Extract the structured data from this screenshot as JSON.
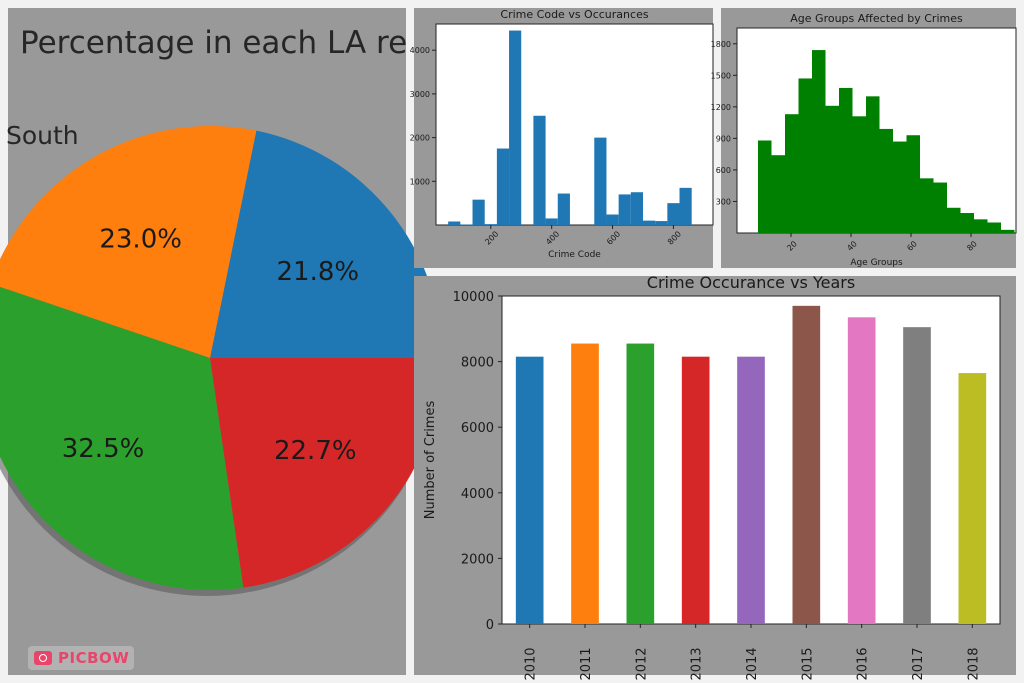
{
  "chart_data": [
    {
      "type": "pie",
      "title": "Percentage in each LA re",
      "labels": [
        "South"
      ],
      "slices": [
        {
          "value": 21.8,
          "label": "21.8%",
          "color": "#1f77b4"
        },
        {
          "value": 23.0,
          "label": "23.0%",
          "color": "#ff7f0e"
        },
        {
          "value": 32.5,
          "label": "32.5%",
          "color": "#2ca02c"
        },
        {
          "value": 22.7,
          "label": "22.7%",
          "color": "#d62728"
        }
      ]
    },
    {
      "type": "bar",
      "title": "Crime Code vs Occurances",
      "xlabel": "Crime Code",
      "ylabel": "",
      "xlim": [
        20,
        930
      ],
      "ylim": [
        0,
        4600
      ],
      "xticks": [
        200,
        400,
        600,
        800
      ],
      "yticks": [
        1000,
        2000,
        3000,
        4000
      ],
      "bin_edges": [
        60,
        100,
        140,
        180,
        220,
        260,
        300,
        340,
        380,
        420,
        460,
        500,
        540,
        580,
        620,
        660,
        700,
        740,
        780,
        820,
        860,
        900,
        940
      ],
      "values": [
        80,
        10,
        580,
        20,
        1750,
        4450,
        0,
        2500,
        150,
        720,
        0,
        0,
        2000,
        240,
        700,
        750,
        100,
        90,
        500,
        850,
        0,
        0
      ],
      "color": "#1f77b4"
    },
    {
      "type": "bar",
      "title": "Age Groups Affected by Crimes",
      "xlabel": "Age Groups",
      "ylabel": "",
      "xlim": [
        2,
        95
      ],
      "ylim": [
        0,
        1950
      ],
      "xticks": [
        20,
        40,
        60,
        80
      ],
      "yticks": [
        300,
        600,
        900,
        1200,
        1500,
        1800
      ],
      "bin_edges": [
        9,
        13.5,
        18,
        22.5,
        27,
        31.5,
        36,
        40.5,
        45,
        49.5,
        54,
        58.5,
        63,
        67.5,
        72,
        76.5,
        81,
        85.5,
        90,
        94.5
      ],
      "values": [
        880,
        740,
        1130,
        1470,
        1740,
        1210,
        1380,
        1110,
        1300,
        990,
        870,
        930,
        520,
        480,
        240,
        190,
        130,
        100,
        30
      ],
      "color": "#008000"
    },
    {
      "type": "bar",
      "title": "Crime Occurance vs Years",
      "xlabel": "",
      "ylabel": "Number of Crimes",
      "ylim": [
        0,
        10000
      ],
      "yticks": [
        0,
        2000,
        4000,
        6000,
        8000,
        10000
      ],
      "categories": [
        "2010",
        "2011",
        "2012",
        "2013",
        "2014",
        "2015",
        "2016",
        "2017",
        "2018"
      ],
      "values": [
        8150,
        8550,
        8550,
        8150,
        8150,
        9700,
        9350,
        9050,
        7650
      ],
      "colors": [
        "#1f77b4",
        "#ff7f0e",
        "#2ca02c",
        "#d62728",
        "#9467bd",
        "#8c564b",
        "#e377c2",
        "#7f7f7f",
        "#bcbd22"
      ]
    }
  ],
  "watermark": {
    "text": "PICBOW",
    "icon": "camera-icon",
    "color": "#e8456b"
  }
}
